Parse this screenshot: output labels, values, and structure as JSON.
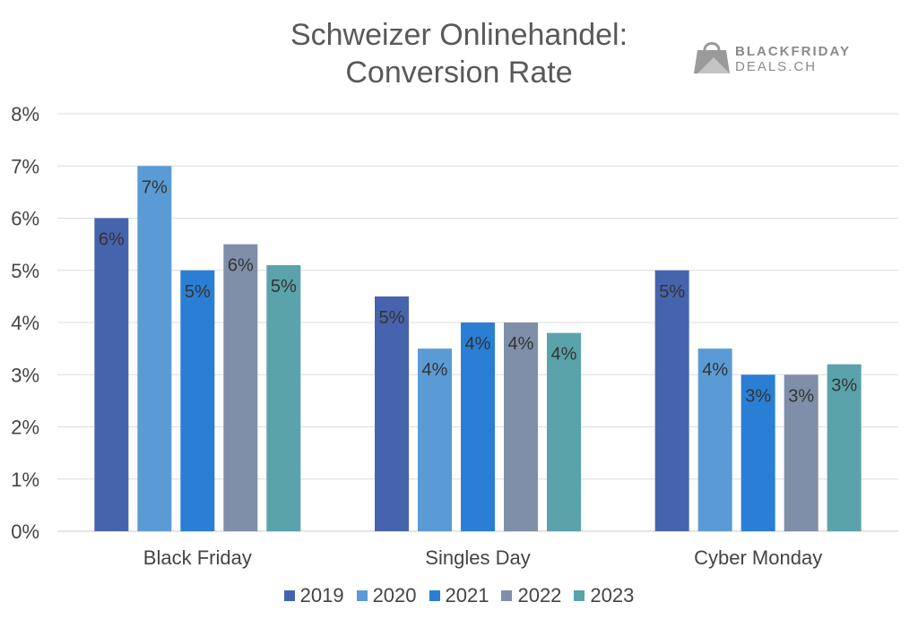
{
  "title_lines": [
    "Schweizer Onlinehandel:",
    "Conversion Rate"
  ],
  "logo": {
    "line1": "BLACKFRIDAY",
    "line2": "DEALS.CH"
  },
  "chart_data": {
    "type": "bar",
    "title": "Schweizer Onlinehandel: Conversion Rate",
    "categories": [
      "Black Friday",
      "Singles Day",
      "Cyber Monday"
    ],
    "series": [
      {
        "name": "2019",
        "color": "#4664ad",
        "values": [
          6.0,
          4.5,
          5.0
        ],
        "labels": [
          "6%",
          "5%",
          "5%"
        ]
      },
      {
        "name": "2020",
        "color": "#5b9bd5",
        "values": [
          7.0,
          3.5,
          3.5
        ],
        "labels": [
          "7%",
          "4%",
          "4%"
        ]
      },
      {
        "name": "2021",
        "color": "#2a7fd4",
        "values": [
          5.0,
          4.0,
          3.0
        ],
        "labels": [
          "5%",
          "4%",
          "3%"
        ]
      },
      {
        "name": "2022",
        "color": "#7f8fa9",
        "values": [
          5.5,
          4.0,
          3.0
        ],
        "labels": [
          "6%",
          "4%",
          "3%"
        ]
      },
      {
        "name": "2023",
        "color": "#5ba3ab",
        "values": [
          5.1,
          3.8,
          3.2
        ],
        "labels": [
          "5%",
          "4%",
          "3%"
        ]
      }
    ],
    "ylim": [
      0,
      8
    ],
    "yticks": [
      "0%",
      "1%",
      "2%",
      "3%",
      "4%",
      "5%",
      "6%",
      "7%",
      "8%"
    ],
    "grid": true,
    "legend_position": "bottom"
  }
}
